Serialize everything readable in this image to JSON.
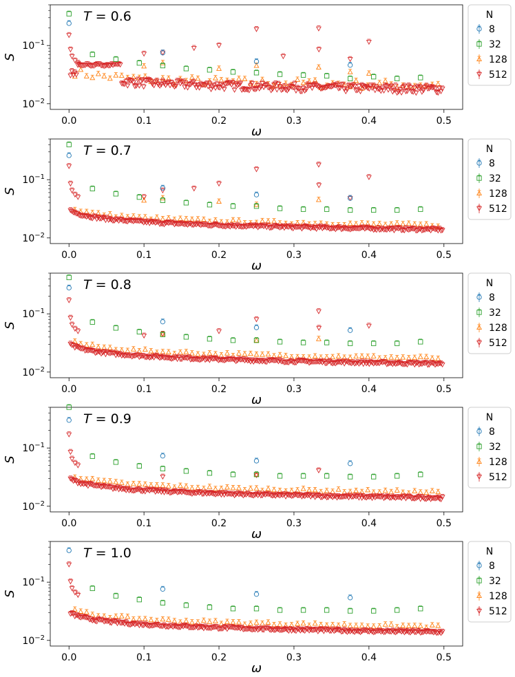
{
  "chart_data": [
    {
      "type": "scatter",
      "title": "T = 0.6",
      "temperature": "0.6",
      "xlabel": "ω",
      "ylabel": "S",
      "xlim": [
        -0.025,
        0.525
      ],
      "ylim": [
        0.008,
        0.5
      ],
      "yscale": "log",
      "xticks": [
        "0.0",
        "0.1",
        "0.2",
        "0.3",
        "0.4",
        "0.5"
      ],
      "yticks": [
        "10−2",
        "10−1"
      ],
      "legend": {
        "title": "N",
        "entries": [
          "8",
          "32",
          "128",
          "512"
        ],
        "placement": "outside-right"
      },
      "series": [
        {
          "name": "8",
          "values": [
            [
              0,
              0.24
            ],
            [
              0.125,
              0.075
            ],
            [
              0.25,
              0.053
            ],
            [
              0.375,
              0.046
            ]
          ]
        },
        {
          "name": "32",
          "values": [
            [
              0,
              0.35
            ],
            [
              0.03125,
              0.07
            ],
            [
              0.0625,
              0.058
            ],
            [
              0.09375,
              0.05
            ],
            [
              0.125,
              0.045
            ],
            [
              0.15625,
              0.04
            ],
            [
              0.1875,
              0.038
            ],
            [
              0.21875,
              0.035
            ],
            [
              0.25,
              0.034
            ],
            [
              0.28125,
              0.032
            ],
            [
              0.3125,
              0.031
            ],
            [
              0.34375,
              0.03
            ],
            [
              0.375,
              0.027
            ],
            [
              0.40625,
              0.029
            ],
            [
              0.4375,
              0.027
            ],
            [
              0.46875,
              0.028
            ]
          ]
        },
        {
          "name": "128",
          "peaks": [
            [
              0.25,
              0.045
            ],
            [
              0.333,
              0.042
            ],
            [
              0.125,
              0.05
            ],
            [
              0.1,
              0.044
            ],
            [
              0.2,
              0.04
            ],
            [
              0.375,
              0.035
            ],
            [
              0.4,
              0.033
            ]
          ]
        },
        {
          "name": "512",
          "peaks": [
            [
              0,
              0.15
            ],
            [
              0.125,
              0.075
            ],
            [
              0.1,
              0.072
            ],
            [
              0.2,
              0.1
            ],
            [
              0.25,
              0.19
            ],
            [
              0.333,
              0.195
            ],
            [
              0.4,
              0.115
            ],
            [
              0.1667,
              0.09
            ],
            [
              0.3333,
              0.085
            ],
            [
              0.2857,
              0.065
            ],
            [
              0.375,
              0.058
            ]
          ]
        }
      ]
    },
    {
      "type": "scatter",
      "title": "T = 0.7",
      "temperature": "0.7",
      "xlabel": "ω",
      "ylabel": "S",
      "xlim": [
        -0.025,
        0.525
      ],
      "ylim": [
        0.008,
        0.5
      ],
      "yscale": "log",
      "xticks": [
        "0.0",
        "0.1",
        "0.2",
        "0.3",
        "0.4",
        "0.5"
      ],
      "yticks": [
        "10−2",
        "10−1"
      ],
      "legend": {
        "title": "N",
        "entries": [
          "8",
          "32",
          "128",
          "512"
        ],
        "placement": "outside-right"
      },
      "series": [
        {
          "name": "8",
          "values": [
            [
              0,
              0.26
            ],
            [
              0.125,
              0.072
            ],
            [
              0.25,
              0.055
            ],
            [
              0.375,
              0.048
            ]
          ]
        },
        {
          "name": "32",
          "values": [
            [
              0,
              0.4
            ],
            [
              0.03125,
              0.07
            ],
            [
              0.0625,
              0.057
            ],
            [
              0.09375,
              0.05
            ],
            [
              0.125,
              0.044
            ],
            [
              0.15625,
              0.04
            ],
            [
              0.1875,
              0.037
            ],
            [
              0.21875,
              0.035
            ],
            [
              0.25,
              0.035
            ],
            [
              0.28125,
              0.032
            ],
            [
              0.3125,
              0.031
            ],
            [
              0.34375,
              0.031
            ],
            [
              0.375,
              0.03
            ],
            [
              0.40625,
              0.03
            ],
            [
              0.4375,
              0.03
            ],
            [
              0.46875,
              0.031
            ]
          ]
        },
        {
          "name": "128",
          "peaks": [
            [
              0.25,
              0.037
            ],
            [
              0.333,
              0.045
            ],
            [
              0.125,
              0.048
            ],
            [
              0.1,
              0.044
            ],
            [
              0.2,
              0.042
            ]
          ]
        },
        {
          "name": "512",
          "peaks": [
            [
              0,
              0.17
            ],
            [
              0.125,
              0.065
            ],
            [
              0.1,
              0.05
            ],
            [
              0.2,
              0.085
            ],
            [
              0.25,
              0.15
            ],
            [
              0.333,
              0.18
            ],
            [
              0.4,
              0.11
            ],
            [
              0.1667,
              0.07
            ],
            [
              0.375,
              0.048
            ],
            [
              0.3333,
              0.08
            ]
          ]
        }
      ]
    },
    {
      "type": "scatter",
      "title": "T = 0.8",
      "temperature": "0.8",
      "xlabel": "ω",
      "ylabel": "S",
      "xlim": [
        -0.025,
        0.525
      ],
      "ylim": [
        0.008,
        0.5
      ],
      "yscale": "log",
      "xticks": [
        "0.0",
        "0.1",
        "0.2",
        "0.3",
        "0.4",
        "0.5"
      ],
      "yticks": [
        "10−2",
        "10−1"
      ],
      "legend": {
        "title": "N",
        "entries": [
          "8",
          "32",
          "128",
          "512"
        ],
        "placement": "outside-right"
      },
      "series": [
        {
          "name": "8",
          "values": [
            [
              0,
              0.28
            ],
            [
              0.125,
              0.073
            ],
            [
              0.25,
              0.058
            ],
            [
              0.375,
              0.052
            ]
          ]
        },
        {
          "name": "32",
          "values": [
            [
              0,
              0.42
            ],
            [
              0.03125,
              0.072
            ],
            [
              0.0625,
              0.057
            ],
            [
              0.09375,
              0.049
            ],
            [
              0.125,
              0.044
            ],
            [
              0.15625,
              0.04
            ],
            [
              0.1875,
              0.037
            ],
            [
              0.21875,
              0.035
            ],
            [
              0.25,
              0.035
            ],
            [
              0.28125,
              0.033
            ],
            [
              0.3125,
              0.032
            ],
            [
              0.34375,
              0.032
            ],
            [
              0.375,
              0.031
            ],
            [
              0.40625,
              0.031
            ],
            [
              0.4375,
              0.031
            ],
            [
              0.46875,
              0.033
            ]
          ]
        },
        {
          "name": "128",
          "peaks": [
            [
              0.25,
              0.035
            ],
            [
              0.333,
              0.037
            ],
            [
              0.125,
              0.045
            ]
          ]
        },
        {
          "name": "512",
          "peaks": [
            [
              0,
              0.17
            ],
            [
              0.125,
              0.045
            ],
            [
              0.2,
              0.05
            ],
            [
              0.25,
              0.08
            ],
            [
              0.333,
              0.11
            ],
            [
              0.4,
              0.062
            ],
            [
              0.1,
              0.042
            ],
            [
              0.3333,
              0.057
            ]
          ]
        }
      ]
    },
    {
      "type": "scatter",
      "title": "T = 0.9",
      "temperature": "0.9",
      "xlabel": "ω",
      "ylabel": "S",
      "xlim": [
        -0.025,
        0.525
      ],
      "ylim": [
        0.008,
        0.5
      ],
      "yscale": "log",
      "xticks": [
        "0.0",
        "0.1",
        "0.2",
        "0.3",
        "0.4",
        "0.5"
      ],
      "yticks": [
        "10−2",
        "10−1"
      ],
      "legend": {
        "title": "N",
        "entries": [
          "8",
          "32",
          "128",
          "512"
        ],
        "placement": "outside-right"
      },
      "series": [
        {
          "name": "8",
          "values": [
            [
              0,
              0.3
            ],
            [
              0.125,
              0.073
            ],
            [
              0.25,
              0.06
            ],
            [
              0.375,
              0.054
            ]
          ]
        },
        {
          "name": "32",
          "values": [
            [
              0,
              0.5
            ],
            [
              0.03125,
              0.072
            ],
            [
              0.0625,
              0.057
            ],
            [
              0.09375,
              0.049
            ],
            [
              0.125,
              0.044
            ],
            [
              0.15625,
              0.04
            ],
            [
              0.1875,
              0.037
            ],
            [
              0.21875,
              0.035
            ],
            [
              0.25,
              0.035
            ],
            [
              0.28125,
              0.033
            ],
            [
              0.3125,
              0.033
            ],
            [
              0.34375,
              0.033
            ],
            [
              0.375,
              0.032
            ],
            [
              0.40625,
              0.032
            ],
            [
              0.4375,
              0.033
            ],
            [
              0.46875,
              0.035
            ]
          ]
        },
        {
          "name": "128",
          "peaks": [
            [
              0.25,
              0.035
            ]
          ]
        },
        {
          "name": "512",
          "peaks": [
            [
              0,
              0.17
            ],
            [
              0.25,
              0.034
            ],
            [
              0.333,
              0.041
            ],
            [
              0.125,
              0.032
            ]
          ]
        }
      ]
    },
    {
      "type": "scatter",
      "title": "T = 1.0",
      "temperature": "1.0",
      "xlabel": "ω",
      "ylabel": "S",
      "xlim": [
        -0.025,
        0.525
      ],
      "ylim": [
        0.008,
        0.5
      ],
      "yscale": "log",
      "xticks": [
        "0.0",
        "0.1",
        "0.2",
        "0.3",
        "0.4",
        "0.5"
      ],
      "yticks": [
        "10−2",
        "10−1"
      ],
      "legend": {
        "title": "N",
        "entries": [
          "8",
          "32",
          "128",
          "512"
        ],
        "placement": "outside-right"
      },
      "series": [
        {
          "name": "8",
          "values": [
            [
              0,
              0.35
            ],
            [
              0.125,
              0.076
            ],
            [
              0.25,
              0.062
            ],
            [
              0.375,
              0.054
            ]
          ]
        },
        {
          "name": "32",
          "values": [
            [
              0.03125,
              0.078
            ],
            [
              0.0625,
              0.058
            ],
            [
              0.09375,
              0.05
            ],
            [
              0.125,
              0.044
            ],
            [
              0.15625,
              0.04
            ],
            [
              0.1875,
              0.037
            ],
            [
              0.21875,
              0.035
            ],
            [
              0.25,
              0.035
            ],
            [
              0.28125,
              0.033
            ],
            [
              0.3125,
              0.033
            ],
            [
              0.34375,
              0.033
            ],
            [
              0.375,
              0.032
            ],
            [
              0.40625,
              0.032
            ],
            [
              0.4375,
              0.033
            ],
            [
              0.46875,
              0.035
            ]
          ]
        },
        {
          "name": "128",
          "peaks": []
        },
        {
          "name": "512",
          "peaks": [
            [
              0,
              0.2
            ]
          ]
        }
      ]
    }
  ],
  "colors": {
    "8": "#1f77b4",
    "32": "#2ca02c",
    "128": "#ff7f0e",
    "512": "#d62728"
  }
}
